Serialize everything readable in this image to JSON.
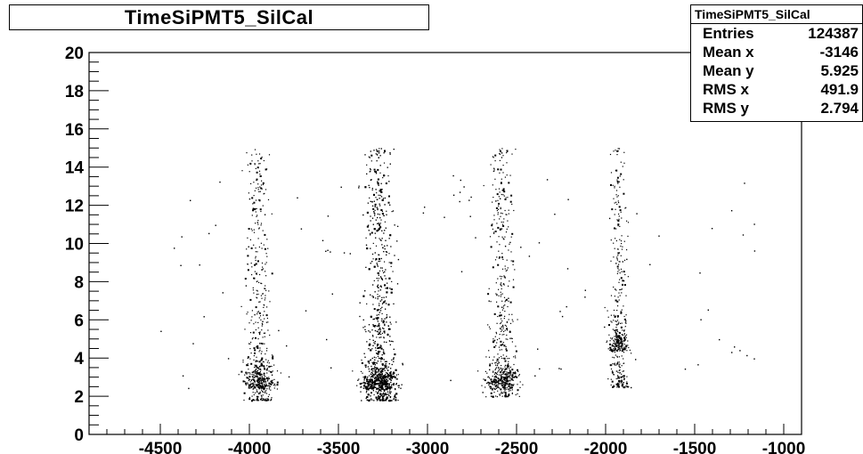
{
  "chart_data": {
    "type": "scatter",
    "title": "TimeSiPMT5_SilCal",
    "xlabel": "",
    "ylabel": "",
    "xlim": [
      -4900,
      -900
    ],
    "ylim": [
      0,
      20
    ],
    "x_ticks": [
      -4500,
      -4000,
      -3500,
      -3000,
      -2500,
      -2000,
      -1500,
      -1000
    ],
    "y_ticks": [
      0,
      2,
      4,
      6,
      8,
      10,
      12,
      14,
      16,
      18,
      20
    ],
    "grid": false,
    "marker_color": "#000000",
    "clusters": [
      {
        "x_center": -3950,
        "x_spread": 45,
        "y_min": 1.8,
        "y_max": 15.0,
        "y_peak": 3.0,
        "points": 650
      },
      {
        "x_center": -3270,
        "x_spread": 55,
        "y_min": 1.8,
        "y_max": 15.0,
        "y_peak": 3.0,
        "points": 1700
      },
      {
        "x_center": -2580,
        "x_spread": 50,
        "y_min": 2.0,
        "y_max": 15.0,
        "y_peak": 3.0,
        "points": 650
      },
      {
        "x_center": -1930,
        "x_spread": 30,
        "y_min": 2.5,
        "y_max": 15.0,
        "y_peak": 5.0,
        "points": 450
      }
    ],
    "stats": {
      "name": "TimeSiPMT5_SilCal",
      "rows": [
        {
          "label": "Entries",
          "value": "124387"
        },
        {
          "label": "Mean x",
          "value": "-3146"
        },
        {
          "label": "Mean y",
          "value": "5.925"
        },
        {
          "label": "RMS x",
          "value": "491.9"
        },
        {
          "label": "RMS y",
          "value": "2.794"
        }
      ]
    }
  }
}
